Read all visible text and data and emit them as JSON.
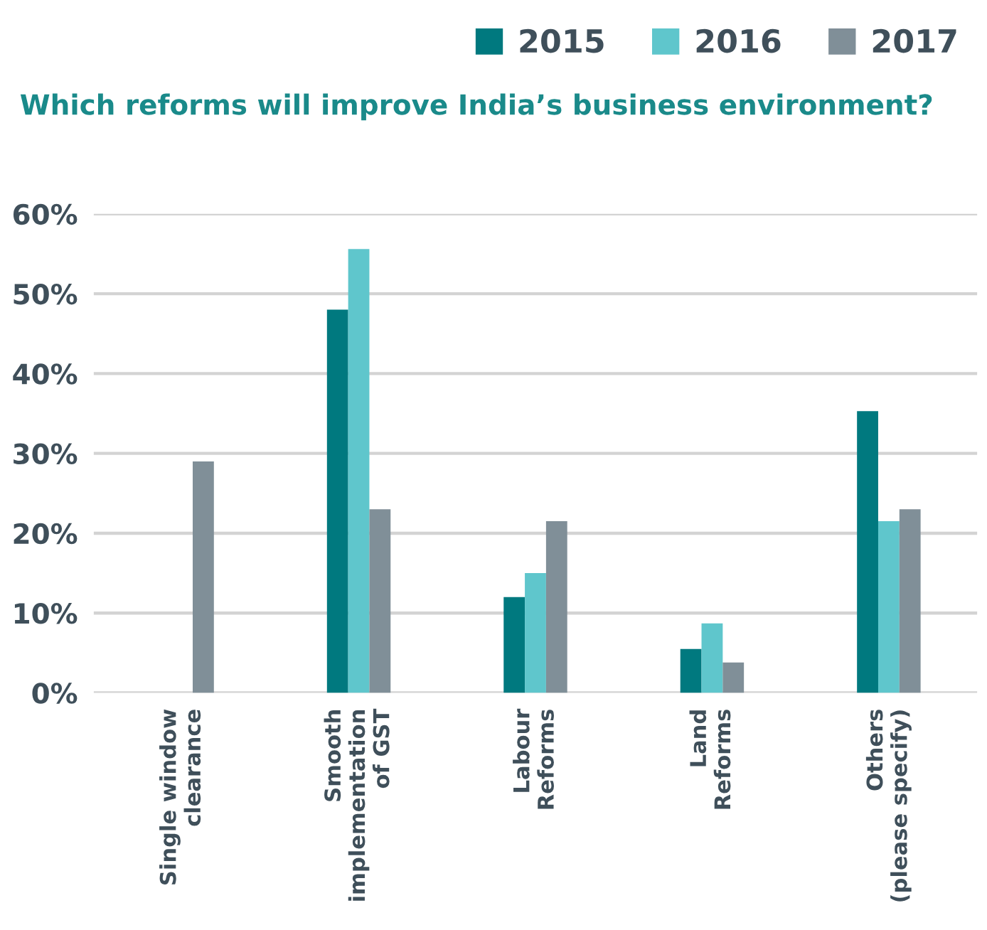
{
  "chart_data": {
    "type": "bar",
    "title": "Which reforms will improve India’s business environment?",
    "categories": [
      "Single window\nclearance",
      "Smooth\nimplementation\nof GST",
      "Labour\nReforms",
      "Land\nReforms",
      "Others\n(please specify)"
    ],
    "series": [
      {
        "name": "2015",
        "color": "#00797f",
        "values": [
          null,
          48,
          12,
          5.5,
          35.3
        ]
      },
      {
        "name": "2016",
        "color": "#5fc6cc",
        "values": [
          null,
          55.6,
          15,
          8.7,
          21.5
        ]
      },
      {
        "name": "2017",
        "color": "#808f98",
        "values": [
          29,
          23,
          21.5,
          3.8,
          23
        ]
      }
    ],
    "ylim": [
      0,
      60
    ],
    "yticks": [
      {
        "value": 0,
        "label": "0%"
      },
      {
        "value": 10,
        "label": "10%"
      },
      {
        "value": 20,
        "label": "20%"
      },
      {
        "value": 30,
        "label": "30%"
      },
      {
        "value": 40,
        "label": "40%"
      },
      {
        "value": 50,
        "label": "50%"
      },
      {
        "value": 60,
        "label": "60%"
      }
    ],
    "grid": "y",
    "legend": "top right"
  }
}
